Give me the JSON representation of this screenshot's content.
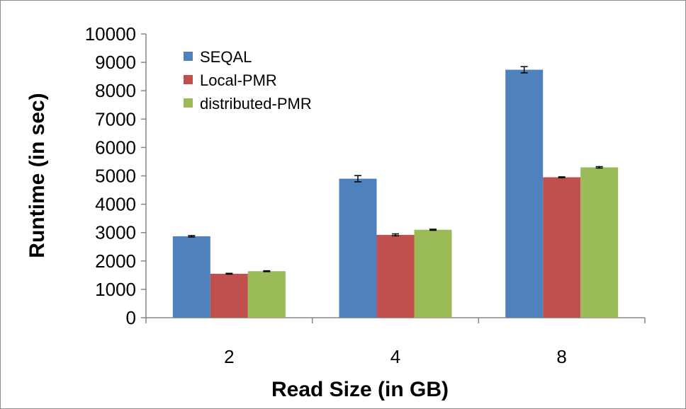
{
  "chart_data": {
    "type": "bar",
    "categories": [
      "2",
      "4",
      "8"
    ],
    "series": [
      {
        "name": "SEQAL",
        "values": [
          2870,
          4900,
          8740
        ],
        "errors": [
          25,
          110,
          110
        ],
        "color": "#4f81bd"
      },
      {
        "name": "Local-PMR",
        "values": [
          1550,
          2920,
          4950
        ],
        "errors": [
          15,
          35,
          15
        ],
        "color": "#c0504d"
      },
      {
        "name": "distributed-PMR",
        "values": [
          1640,
          3100,
          5300
        ],
        "errors": [
          15,
          20,
          25
        ],
        "color": "#9bbb59"
      }
    ],
    "xlabel": "Read Size (in GB)",
    "ylabel": "Runtime (in sec)",
    "ylim": [
      0,
      10000
    ],
    "yticks": [
      0,
      1000,
      2000,
      3000,
      4000,
      5000,
      6000,
      7000,
      8000,
      9000,
      10000
    ],
    "legend_position": "top-left",
    "grid": false
  }
}
